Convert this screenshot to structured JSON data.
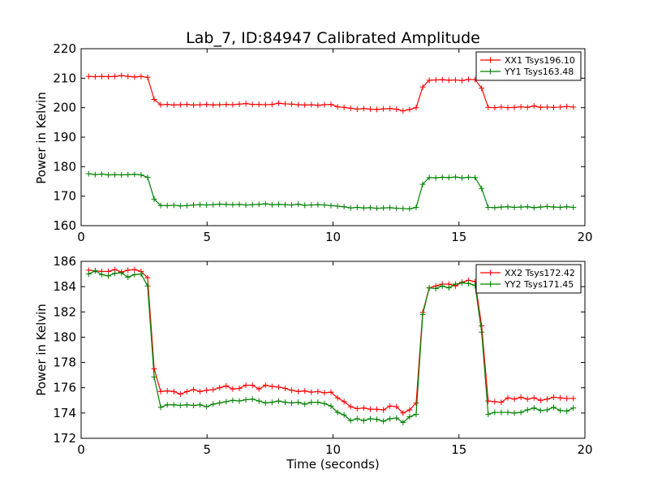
{
  "chart_data": [
    {
      "type": "line",
      "title": "Lab_7, ID:84947 Calibrated Amplitude",
      "xlabel": "",
      "ylabel": "Power in Kelvin",
      "xlim": [
        0,
        20
      ],
      "ylim": [
        160,
        220
      ],
      "xticks": [
        0,
        5,
        10,
        15,
        20
      ],
      "yticks": [
        160,
        170,
        180,
        190,
        200,
        210,
        220
      ],
      "grid": false,
      "legend_position": "top-right",
      "x": [
        0.3,
        0.56,
        0.82,
        1.08,
        1.34,
        1.6,
        1.86,
        2.12,
        2.38,
        2.64,
        2.9,
        3.16,
        3.42,
        3.68,
        3.94,
        4.2,
        4.46,
        4.72,
        4.98,
        5.24,
        5.5,
        5.76,
        6.02,
        6.28,
        6.54,
        6.8,
        7.06,
        7.32,
        7.58,
        7.84,
        8.1,
        8.36,
        8.62,
        8.88,
        9.14,
        9.4,
        9.66,
        9.92,
        10.18,
        10.44,
        10.7,
        10.96,
        11.22,
        11.48,
        11.74,
        12.0,
        12.26,
        12.52,
        12.78,
        13.04,
        13.3,
        13.56,
        13.82,
        14.08,
        14.34,
        14.6,
        14.86,
        15.12,
        15.38,
        15.64,
        15.9,
        16.16,
        16.42,
        16.68,
        16.94,
        17.2,
        17.46,
        17.72,
        17.98,
        18.24,
        18.5,
        18.76,
        19.02,
        19.28,
        19.54
      ],
      "series": [
        {
          "name": "XX1 Tsys196.10",
          "color": "#ff0000",
          "values": [
            210.6,
            210.5,
            210.6,
            210.5,
            210.6,
            210.9,
            210.6,
            210.4,
            210.6,
            210.3,
            202.8,
            201.0,
            201.1,
            200.9,
            201.0,
            201.1,
            200.9,
            201.0,
            201.1,
            200.9,
            201.0,
            201.1,
            201.0,
            201.2,
            201.4,
            201.1,
            201.1,
            201.0,
            201.1,
            201.5,
            201.3,
            201.2,
            201.0,
            200.9,
            201.0,
            200.8,
            201.0,
            201.1,
            200.3,
            200.1,
            199.8,
            199.5,
            199.7,
            199.5,
            199.4,
            199.6,
            199.7,
            199.5,
            198.9,
            199.4,
            200.0,
            207.0,
            209.3,
            209.4,
            209.5,
            209.3,
            209.4,
            209.2,
            209.6,
            209.5,
            206.6,
            200.1,
            200.0,
            200.2,
            200.0,
            200.1,
            200.3,
            200.1,
            200.6,
            200.1,
            200.2,
            200.1,
            200.2,
            200.4,
            200.2
          ]
        },
        {
          "name": "YY1 Tsys163.48",
          "color": "#008000",
          "values": [
            177.6,
            177.3,
            177.5,
            177.2,
            177.3,
            177.2,
            177.3,
            177.4,
            177.2,
            176.4,
            169.0,
            166.8,
            166.8,
            166.9,
            166.7,
            166.8,
            167.0,
            167.1,
            167.0,
            167.1,
            167.3,
            167.2,
            167.1,
            167.2,
            167.0,
            167.1,
            167.2,
            167.4,
            167.1,
            167.2,
            167.1,
            167.0,
            167.3,
            166.9,
            167.0,
            167.1,
            167.0,
            166.8,
            166.6,
            166.4,
            166.0,
            166.2,
            166.0,
            166.1,
            165.9,
            166.0,
            166.1,
            165.9,
            165.8,
            165.7,
            166.2,
            174.0,
            176.3,
            176.2,
            176.4,
            176.3,
            176.5,
            176.2,
            176.4,
            176.3,
            172.6,
            166.2,
            166.1,
            166.3,
            166.4,
            166.2,
            166.3,
            166.4,
            166.1,
            166.3,
            166.5,
            166.3,
            166.2,
            166.4,
            166.2
          ]
        }
      ]
    },
    {
      "type": "line",
      "title": "",
      "xlabel": "Time (seconds)",
      "ylabel": "Power in Kelvin",
      "xlim": [
        0,
        20
      ],
      "ylim": [
        172,
        186
      ],
      "xticks": [
        0,
        5,
        10,
        15,
        20
      ],
      "yticks": [
        172,
        174,
        176,
        178,
        180,
        182,
        184,
        186
      ],
      "grid": false,
      "legend_position": "top-right",
      "x": [
        0.3,
        0.56,
        0.82,
        1.08,
        1.34,
        1.6,
        1.86,
        2.12,
        2.38,
        2.64,
        2.9,
        3.16,
        3.42,
        3.68,
        3.94,
        4.2,
        4.46,
        4.72,
        4.98,
        5.24,
        5.5,
        5.76,
        6.02,
        6.28,
        6.54,
        6.8,
        7.06,
        7.32,
        7.58,
        7.84,
        8.1,
        8.36,
        8.62,
        8.88,
        9.14,
        9.4,
        9.66,
        9.92,
        10.18,
        10.44,
        10.7,
        10.96,
        11.22,
        11.48,
        11.74,
        12.0,
        12.26,
        12.52,
        12.78,
        13.04,
        13.3,
        13.56,
        13.82,
        14.08,
        14.34,
        14.6,
        14.86,
        15.12,
        15.38,
        15.64,
        15.9,
        16.16,
        16.42,
        16.68,
        16.94,
        17.2,
        17.46,
        17.72,
        17.98,
        18.24,
        18.5,
        18.76,
        19.02,
        19.28,
        19.54
      ],
      "series": [
        {
          "name": "XX2 Tsys172.42",
          "color": "#ff0000",
          "values": [
            185.3,
            185.25,
            185.2,
            185.2,
            185.35,
            185.15,
            185.3,
            185.35,
            185.2,
            184.7,
            177.5,
            175.7,
            175.75,
            175.7,
            175.5,
            175.7,
            175.85,
            175.7,
            175.8,
            175.85,
            176.0,
            176.15,
            175.9,
            175.95,
            176.2,
            176.2,
            175.9,
            176.2,
            176.1,
            176.05,
            175.95,
            175.8,
            175.7,
            175.75,
            175.65,
            175.7,
            175.6,
            175.65,
            175.2,
            174.9,
            174.5,
            174.35,
            174.4,
            174.3,
            174.3,
            174.25,
            174.55,
            174.5,
            174.0,
            174.25,
            174.8,
            181.95,
            183.9,
            184.05,
            184.2,
            184.2,
            184.05,
            184.35,
            184.5,
            184.4,
            180.9,
            174.95,
            174.9,
            174.85,
            175.2,
            175.1,
            175.25,
            175.1,
            175.2,
            175.0,
            175.1,
            175.25,
            175.2,
            175.15,
            175.15
          ]
        },
        {
          "name": "YY2 Tsys171.45",
          "color": "#008000",
          "values": [
            185.0,
            185.25,
            184.95,
            184.85,
            185.05,
            185.1,
            184.75,
            184.95,
            185.0,
            184.05,
            176.85,
            174.45,
            174.65,
            174.65,
            174.6,
            174.65,
            174.6,
            174.65,
            174.5,
            174.7,
            174.8,
            174.9,
            175.0,
            174.95,
            175.05,
            175.1,
            174.95,
            174.8,
            174.85,
            174.95,
            174.85,
            174.8,
            174.85,
            174.7,
            174.85,
            174.85,
            174.75,
            174.55,
            174.05,
            173.85,
            173.4,
            173.55,
            173.4,
            173.55,
            173.5,
            173.35,
            173.55,
            173.6,
            173.25,
            173.7,
            173.9,
            181.8,
            183.9,
            183.85,
            184.05,
            183.9,
            184.2,
            184.3,
            184.25,
            184.1,
            180.4,
            173.9,
            174.05,
            174.05,
            174.05,
            174.0,
            174.05,
            174.25,
            174.4,
            174.2,
            174.25,
            174.45,
            174.2,
            174.15,
            174.4
          ]
        }
      ]
    }
  ]
}
